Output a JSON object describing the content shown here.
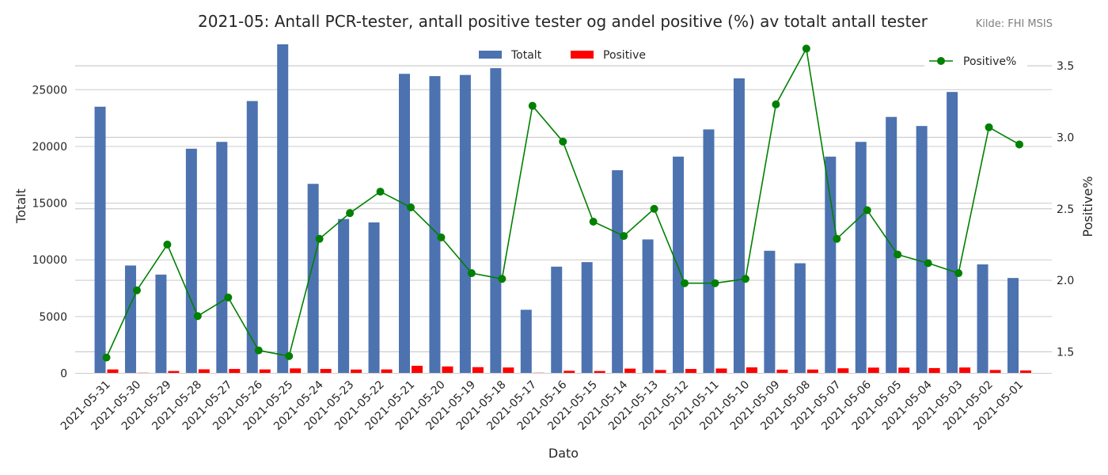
{
  "chart_data": {
    "type": "bar+line",
    "title": "2021-05: Antall PCR-tester, antall positive tester og andel positive (%) av totalt antall tester",
    "source": "Kilde: FHI MSIS",
    "xlabel": "Dato",
    "ylabel_left": "Totalt",
    "ylabel_right": "Positive%",
    "ylim_left": [
      0,
      29000
    ],
    "ylim_right": [
      1.35,
      3.65
    ],
    "yticks_left": [
      0,
      5000,
      10000,
      15000,
      20000,
      25000
    ],
    "yticks_right": [
      1.5,
      2.0,
      2.5,
      3.0,
      3.5
    ],
    "legend_bars_position": "top-center",
    "legend_line_position": "top-right",
    "colors": {
      "totalt": "#4c72b0",
      "positive": "#ff0000",
      "positive_pct": "#008000"
    },
    "categories": [
      "2021-05-31",
      "2021-05-30",
      "2021-05-29",
      "2021-05-28",
      "2021-05-27",
      "2021-05-26",
      "2021-05-25",
      "2021-05-24",
      "2021-05-23",
      "2021-05-22",
      "2021-05-21",
      "2021-05-20",
      "2021-05-19",
      "2021-05-18",
      "2021-05-17",
      "2021-05-16",
      "2021-05-15",
      "2021-05-14",
      "2021-05-13",
      "2021-05-12",
      "2021-05-11",
      "2021-05-10",
      "2021-05-09",
      "2021-05-08",
      "2021-05-07",
      "2021-05-06",
      "2021-05-05",
      "2021-05-04",
      "2021-05-03",
      "2021-05-02",
      "2021-05-01"
    ],
    "series": [
      {
        "name": "Totalt",
        "axis": "left",
        "kind": "bar",
        "values": [
          23500,
          9500,
          8700,
          19800,
          20400,
          24000,
          29000,
          16700,
          13600,
          13300,
          26400,
          26200,
          26300,
          26900,
          5600,
          9400,
          9800,
          17900,
          11800,
          19100,
          21500,
          26000,
          10800,
          9700,
          19100,
          20400,
          22600,
          21800,
          24800,
          9600,
          8400
        ]
      },
      {
        "name": "Positive",
        "axis": "left",
        "kind": "bar",
        "values": [
          340,
          50,
          200,
          350,
          380,
          340,
          430,
          380,
          330,
          340,
          660,
          600,
          540,
          510,
          50,
          220,
          200,
          410,
          290,
          380,
          420,
          520,
          320,
          330,
          440,
          500,
          500,
          460,
          510,
          290,
          250
        ]
      },
      {
        "name": "Positive%",
        "axis": "right",
        "kind": "line",
        "values": [
          1.46,
          1.93,
          2.25,
          1.75,
          1.88,
          1.51,
          1.47,
          2.29,
          2.47,
          2.62,
          2.51,
          2.3,
          2.05,
          2.01,
          3.22,
          2.97,
          2.41,
          2.31,
          2.5,
          1.98,
          1.98,
          2.01,
          3.23,
          3.62,
          2.29,
          2.49,
          2.18,
          2.12,
          2.05,
          3.07,
          2.95
        ]
      }
    ]
  }
}
